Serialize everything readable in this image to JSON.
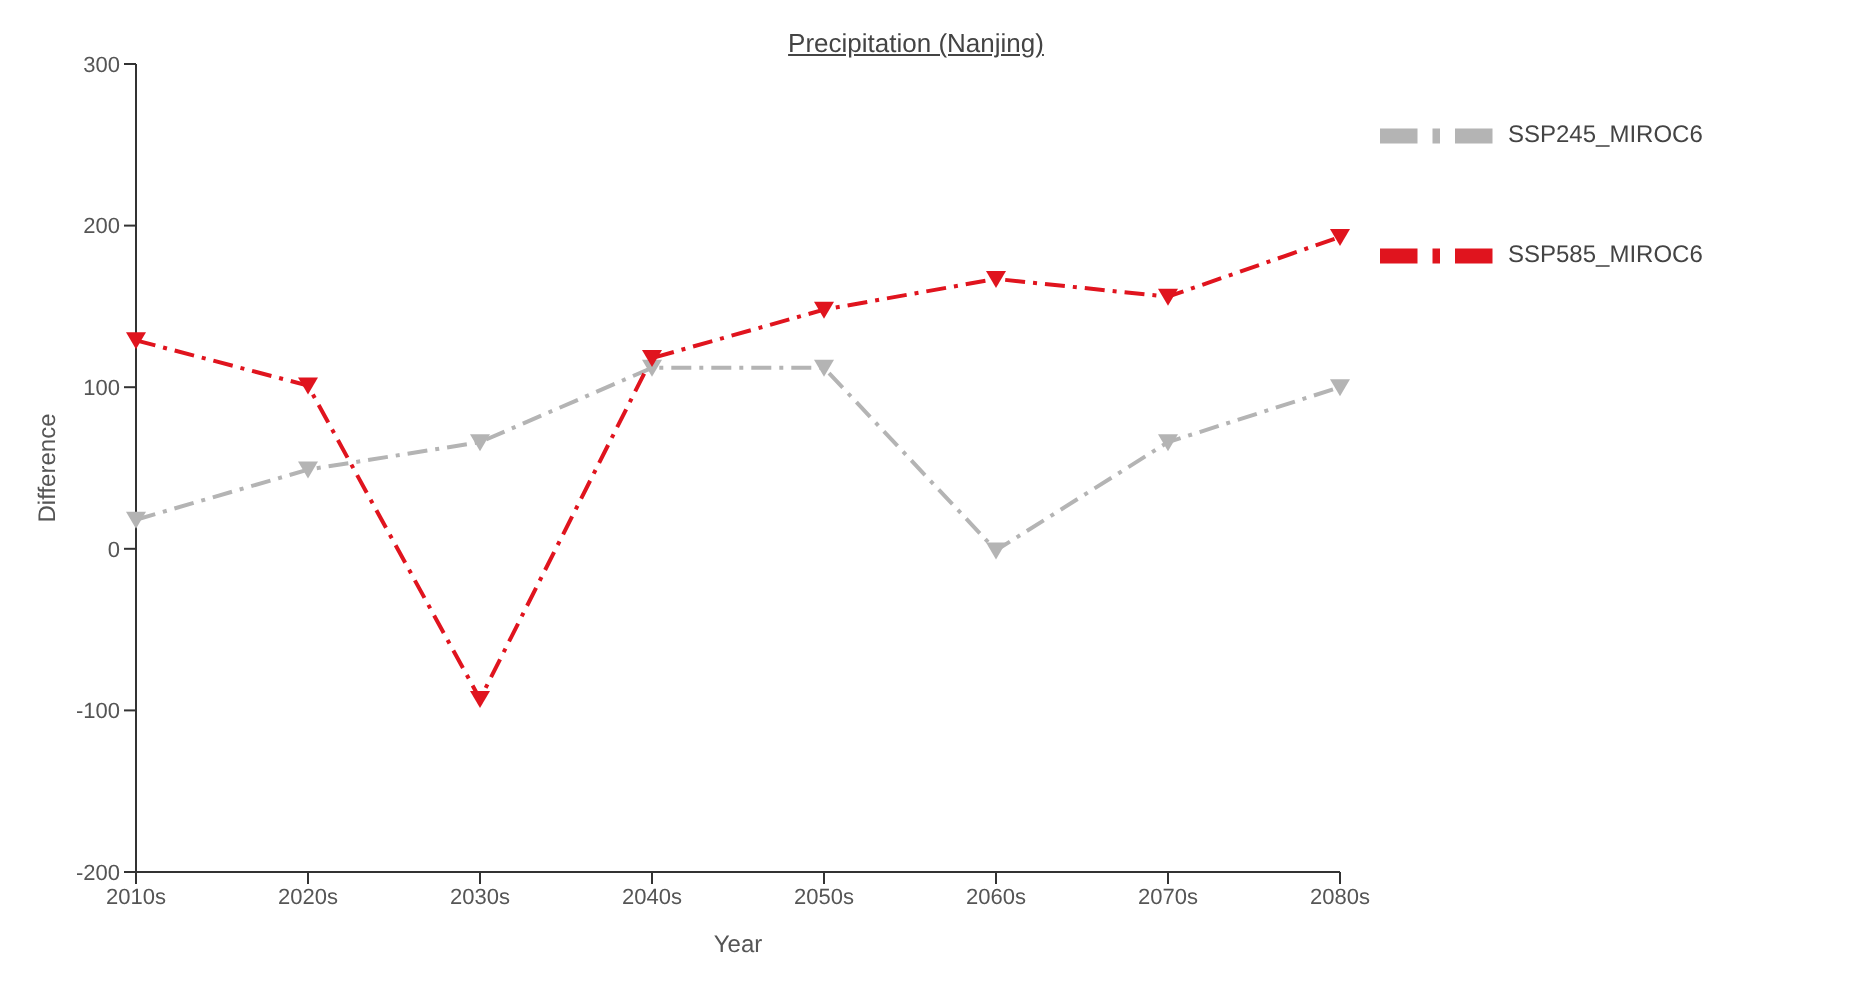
{
  "chart_data": {
    "type": "line",
    "title": "Precipitation (Nanjing)",
    "xlabel": "Year",
    "ylabel": "Difference",
    "categories": [
      "2010s",
      "2020s",
      "2030s",
      "2040s",
      "2050s",
      "2060s",
      "2070s",
      "2080s"
    ],
    "series": [
      {
        "name": "SSP245_MIROC6",
        "color": "#b4b4b4",
        "values": [
          18,
          49,
          66,
          112,
          112,
          -1,
          66,
          100
        ]
      },
      {
        "name": "SSP585_MIROC6",
        "color": "#e0141e",
        "values": [
          129,
          101,
          -93,
          118,
          148,
          167,
          156,
          193
        ]
      }
    ],
    "ylim": [
      -200,
      300
    ],
    "yticks": [
      -200,
      -100,
      0,
      100,
      200,
      300
    ],
    "grid": false,
    "legend": "top right",
    "marker": "triangle",
    "line_style": "dashed"
  }
}
